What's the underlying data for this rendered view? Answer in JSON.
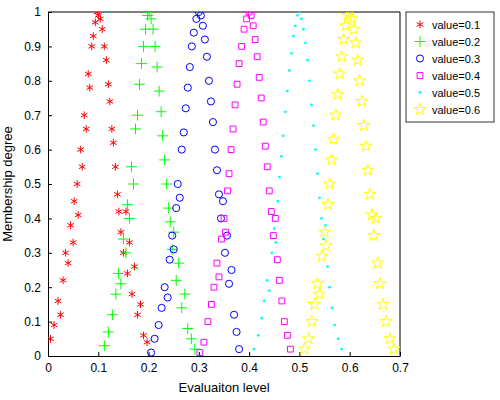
{
  "chart_data": {
    "type": "scatter",
    "x_label": "Evaluaiton level",
    "y_label": "Membership degree",
    "xlim": [
      0,
      0.7
    ],
    "xticks": [
      0,
      0.1,
      0.2,
      0.3,
      0.4,
      0.5,
      0.6,
      0.7
    ],
    "ylim": [
      0,
      1
    ],
    "yticks": [
      0,
      0.1,
      0.2,
      0.3,
      0.4,
      0.5,
      0.6,
      0.7,
      0.8,
      0.9,
      1
    ],
    "grid": false,
    "legend": "upper right",
    "series": [
      {
        "name": "value=0.1",
        "color": "#ff0000",
        "marker": "asterisk",
        "x": [
          0.005,
          0.012,
          0.02,
          0.025,
          0.03,
          0.035,
          0.04,
          0.045,
          0.05,
          0.052,
          0.058,
          0.06,
          0.065,
          0.068,
          0.072,
          0.076,
          0.08,
          0.083,
          0.087,
          0.09,
          0.094,
          0.098,
          0.1,
          0.104,
          0.108,
          0.112,
          0.116,
          0.12,
          0.123,
          0.127,
          0.13,
          0.134,
          0.138,
          0.141,
          0.145,
          0.15,
          0.155,
          0.158,
          0.162,
          0.167,
          0.172,
          0.178,
          0.184,
          0.19,
          0.197
        ],
        "values": [
          0.05,
          0.09,
          0.16,
          0.12,
          0.22,
          0.3,
          0.27,
          0.38,
          0.33,
          0.45,
          0.5,
          0.41,
          0.6,
          0.55,
          0.7,
          0.66,
          0.82,
          0.78,
          0.9,
          0.93,
          0.97,
          1.0,
          0.99,
          0.98,
          0.95,
          0.9,
          0.86,
          0.79,
          0.74,
          0.66,
          0.62,
          0.55,
          0.47,
          0.42,
          0.36,
          0.3,
          0.42,
          0.24,
          0.33,
          0.18,
          0.26,
          0.12,
          0.15,
          0.06,
          0.04
        ]
      },
      {
        "name": "value=0.2",
        "color": "#00ff00",
        "marker": "plus",
        "x": [
          0.112,
          0.12,
          0.128,
          0.135,
          0.14,
          0.145,
          0.15,
          0.155,
          0.158,
          0.162,
          0.166,
          0.17,
          0.174,
          0.178,
          0.182,
          0.186,
          0.19,
          0.194,
          0.198,
          0.201,
          0.205,
          0.209,
          0.213,
          0.217,
          0.221,
          0.225,
          0.228,
          0.232,
          0.236,
          0.24,
          0.243,
          0.247,
          0.25,
          0.255,
          0.26,
          0.266,
          0.272,
          0.278,
          0.285,
          0.292
        ],
        "values": [
          0.03,
          0.07,
          0.12,
          0.18,
          0.24,
          0.21,
          0.34,
          0.3,
          0.44,
          0.4,
          0.55,
          0.5,
          0.66,
          0.7,
          0.79,
          0.85,
          0.9,
          0.95,
          0.99,
          1.0,
          0.98,
          0.95,
          0.9,
          0.84,
          0.77,
          0.71,
          0.64,
          0.57,
          0.5,
          0.43,
          0.39,
          0.31,
          0.36,
          0.22,
          0.27,
          0.14,
          0.18,
          0.08,
          0.05,
          0.02
        ]
      },
      {
        "name": "value=0.3",
        "color": "#0000ff",
        "marker": "circle",
        "x": [
          0.205,
          0.212,
          0.22,
          0.226,
          0.232,
          0.238,
          0.242,
          0.247,
          0.25,
          0.255,
          0.258,
          0.262,
          0.266,
          0.27,
          0.274,
          0.278,
          0.282,
          0.286,
          0.29,
          0.295,
          0.3,
          0.304,
          0.308,
          0.312,
          0.316,
          0.32,
          0.324,
          0.328,
          0.332,
          0.336,
          0.34,
          0.344,
          0.348,
          0.352,
          0.356,
          0.36,
          0.365,
          0.37,
          0.375,
          0.38
        ],
        "values": [
          0.01,
          0.05,
          0.09,
          0.14,
          0.2,
          0.17,
          0.28,
          0.35,
          0.31,
          0.43,
          0.5,
          0.46,
          0.6,
          0.65,
          0.72,
          0.78,
          0.84,
          0.9,
          0.94,
          0.98,
          1.0,
          0.99,
          0.96,
          0.92,
          0.87,
          0.8,
          0.74,
          0.68,
          0.6,
          0.54,
          0.47,
          0.4,
          0.45,
          0.3,
          0.35,
          0.21,
          0.25,
          0.12,
          0.07,
          0.02
        ]
      },
      {
        "name": "value=0.4",
        "color": "#ff00ff",
        "marker": "square",
        "x": [
          0.302,
          0.31,
          0.318,
          0.325,
          0.33,
          0.336,
          0.34,
          0.345,
          0.35,
          0.353,
          0.357,
          0.36,
          0.364,
          0.368,
          0.372,
          0.376,
          0.38,
          0.385,
          0.39,
          0.395,
          0.4,
          0.404,
          0.408,
          0.412,
          0.416,
          0.42,
          0.424,
          0.428,
          0.432,
          0.436,
          0.44,
          0.444,
          0.448,
          0.452,
          0.456,
          0.46,
          0.465,
          0.47,
          0.476,
          0.482
        ],
        "values": [
          0.01,
          0.04,
          0.1,
          0.15,
          0.2,
          0.27,
          0.23,
          0.34,
          0.4,
          0.36,
          0.48,
          0.53,
          0.6,
          0.66,
          0.73,
          0.79,
          0.85,
          0.9,
          0.95,
          0.98,
          1.0,
          0.99,
          0.96,
          0.92,
          0.87,
          0.81,
          0.75,
          0.68,
          0.61,
          0.55,
          0.48,
          0.42,
          0.35,
          0.4,
          0.28,
          0.22,
          0.16,
          0.1,
          0.06,
          0.02
        ]
      },
      {
        "name": "value=0.5",
        "color": "#00ffff",
        "marker": "point",
        "x": [
          0.41,
          0.418,
          0.425,
          0.43,
          0.436,
          0.44,
          0.445,
          0.45,
          0.453,
          0.457,
          0.46,
          0.464,
          0.468,
          0.472,
          0.476,
          0.48,
          0.484,
          0.488,
          0.492,
          0.496,
          0.5,
          0.504,
          0.508,
          0.512,
          0.516,
          0.52,
          0.524,
          0.528,
          0.532,
          0.536,
          0.54,
          0.544,
          0.548,
          0.552,
          0.556,
          0.56,
          0.565,
          0.57,
          0.577,
          0.584
        ],
        "values": [
          0.02,
          0.06,
          0.11,
          0.16,
          0.22,
          0.19,
          0.3,
          0.37,
          0.33,
          0.45,
          0.52,
          0.58,
          0.64,
          0.71,
          0.77,
          0.83,
          0.88,
          0.93,
          0.96,
          0.99,
          1.0,
          0.98,
          0.95,
          0.91,
          0.86,
          0.8,
          0.73,
          0.67,
          0.6,
          0.53,
          0.46,
          0.4,
          0.34,
          0.38,
          0.26,
          0.2,
          0.14,
          0.09,
          0.05,
          0.02
        ]
      },
      {
        "name": "value=0.6",
        "color": "#ffff00",
        "marker": "hexagram",
        "x": [
          0.51,
          0.518,
          0.525,
          0.53,
          0.536,
          0.54,
          0.545,
          0.55,
          0.553,
          0.557,
          0.56,
          0.564,
          0.568,
          0.572,
          0.576,
          0.58,
          0.584,
          0.588,
          0.592,
          0.596,
          0.6,
          0.604,
          0.608,
          0.612,
          0.616,
          0.62,
          0.624,
          0.628,
          0.632,
          0.636,
          0.64,
          0.644,
          0.648,
          0.652,
          0.656,
          0.66,
          0.666,
          0.672,
          0.68,
          0.688
        ],
        "values": [
          0.02,
          0.05,
          0.1,
          0.15,
          0.21,
          0.18,
          0.29,
          0.36,
          0.32,
          0.44,
          0.5,
          0.57,
          0.63,
          0.7,
          0.76,
          0.82,
          0.87,
          0.92,
          0.96,
          0.99,
          1.0,
          0.98,
          0.95,
          0.91,
          0.86,
          0.8,
          0.74,
          0.67,
          0.61,
          0.54,
          0.47,
          0.41,
          0.35,
          0.4,
          0.27,
          0.21,
          0.15,
          0.1,
          0.05,
          0.02
        ]
      }
    ]
  }
}
